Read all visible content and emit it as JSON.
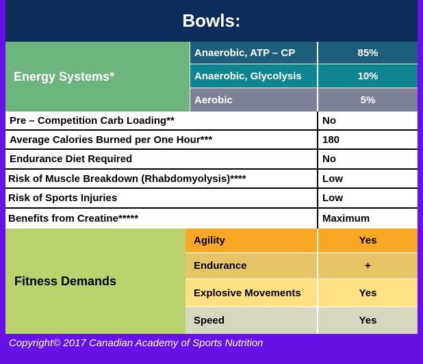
{
  "title": "Bowls:",
  "energy_systems": {
    "label": "Energy Systems*",
    "rows": [
      {
        "name": "Anaerobic, ATP – CP",
        "value": "85%"
      },
      {
        "name": "Anaerobic, Glycolysis",
        "value": "10%"
      },
      {
        "name": "Aerobic",
        "value": "5%"
      }
    ]
  },
  "info_rows": [
    {
      "label": "Pre – Competition Carb Loading**",
      "value": "No"
    },
    {
      "label": "Average Calories Burned per One Hour***",
      "value": "180"
    },
    {
      "label": "Endurance Diet Required",
      "value": "No"
    },
    {
      "label": "Risk of Muscle Breakdown (Rhabdomyolysis)****",
      "value": "Low"
    },
    {
      "label": "Risk of Sports Injuries",
      "value": "Low"
    },
    {
      "label": "Benefits from Creatine*****",
      "value": "Maximum"
    }
  ],
  "fitness_demands": {
    "label": "Fitness Demands",
    "rows": [
      {
        "name": "Agility",
        "value": "Yes"
      },
      {
        "name": "Endurance",
        "value": "+"
      },
      {
        "name": "Explosive Movements",
        "value": "Yes"
      },
      {
        "name": "Speed",
        "value": "Yes"
      }
    ]
  },
  "copyright": "Copyright© 2017 Canadian Academy of Sports Nutrition",
  "colors": {
    "title_bg": "#0c2d5a",
    "energy_label_bg": "#6db57c",
    "atp_bg": "#1d5f7a",
    "glycolysis_bg": "#0f8590",
    "aerobic_bg": "#7d8198",
    "fitness_label_bg": "#b9d36f",
    "agility_bg": "#f9a825",
    "endurance_bg": "#e6c566",
    "explosive_bg": "#ffe082",
    "speed_bg": "#d8d8c0",
    "frame": "#6611e6"
  }
}
